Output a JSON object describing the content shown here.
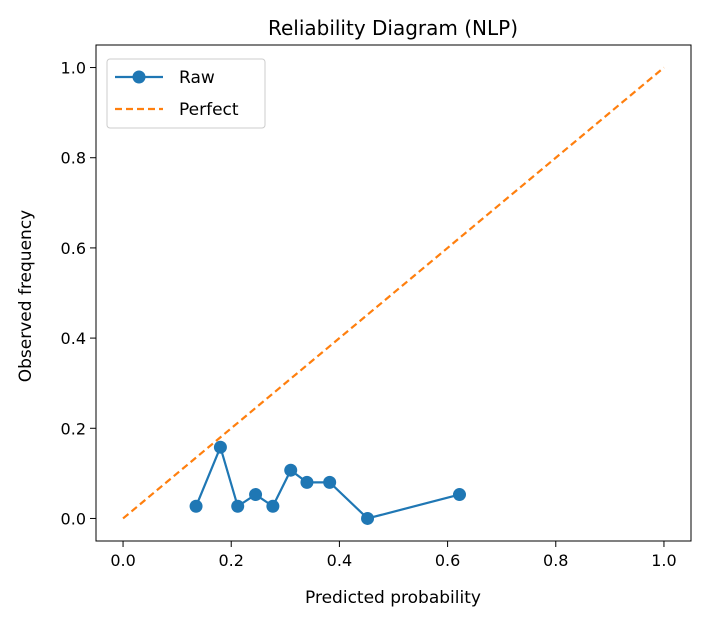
{
  "chart_data": {
    "type": "line",
    "title": "Reliability Diagram (NLP)",
    "xlabel": "Predicted probability",
    "ylabel": "Observed frequency",
    "xlim": [
      -0.05,
      1.05
    ],
    "ylim": [
      -0.05,
      1.05
    ],
    "xticks": [
      0.0,
      0.2,
      0.4,
      0.6,
      0.8,
      1.0
    ],
    "yticks": [
      0.0,
      0.2,
      0.4,
      0.6,
      0.8,
      1.0
    ],
    "xtick_labels": [
      "0.0",
      "0.2",
      "0.4",
      "0.6",
      "0.8",
      "1.0"
    ],
    "ytick_labels": [
      "0.0",
      "0.2",
      "0.4",
      "0.6",
      "0.8",
      "1.0"
    ],
    "grid": false,
    "legend_position": "top-left",
    "series": [
      {
        "name": "Raw",
        "style": "solid-with-circle-markers",
        "color": "#1f77b4",
        "x": [
          0.135,
          0.18,
          0.212,
          0.245,
          0.277,
          0.31,
          0.34,
          0.382,
          0.452,
          0.622
        ],
        "y": [
          0.027,
          0.158,
          0.027,
          0.053,
          0.027,
          0.107,
          0.08,
          0.08,
          0.0,
          0.053
        ]
      },
      {
        "name": "Perfect",
        "style": "dashed",
        "color": "#ff7f0e",
        "x": [
          0.0,
          1.0
        ],
        "y": [
          0.0,
          1.0
        ]
      }
    ]
  }
}
